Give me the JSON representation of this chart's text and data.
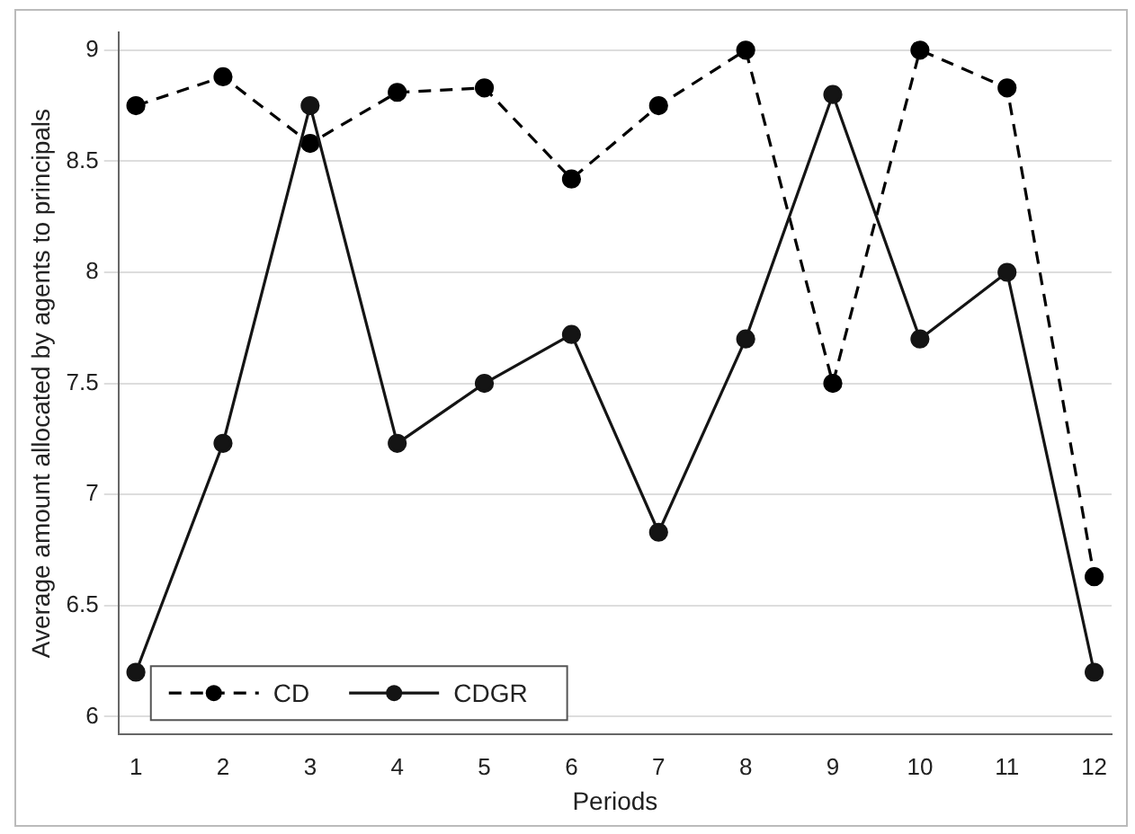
{
  "chart_data": {
    "type": "line",
    "xlabel": "Periods",
    "ylabel": "Average amount allocated by agents to principals",
    "x": [
      1,
      2,
      3,
      4,
      5,
      6,
      7,
      8,
      9,
      10,
      11,
      12
    ],
    "series": [
      {
        "name": "CD",
        "color": "#000000",
        "line_style": "dashed",
        "values": [
          8.75,
          8.88,
          8.58,
          8.81,
          8.83,
          8.42,
          8.75,
          9.0,
          7.5,
          9.0,
          8.83,
          6.63
        ]
      },
      {
        "name": "CDGR",
        "color": "#141414",
        "line_style": "solid",
        "values": [
          6.2,
          7.23,
          8.75,
          7.23,
          7.5,
          7.72,
          6.83,
          7.7,
          8.8,
          7.7,
          8.0,
          6.2
        ]
      }
    ],
    "xlim": [
      0.8,
      12.2
    ],
    "xticks": [
      1,
      2,
      3,
      4,
      5,
      6,
      7,
      8,
      9,
      10,
      11,
      12
    ],
    "ylim": [
      5.92,
      9.08
    ],
    "yticks": [
      6,
      6.5,
      7,
      7.5,
      8,
      8.5,
      9
    ],
    "grid": "y",
    "legend": "bottom left",
    "marker": "circle"
  }
}
